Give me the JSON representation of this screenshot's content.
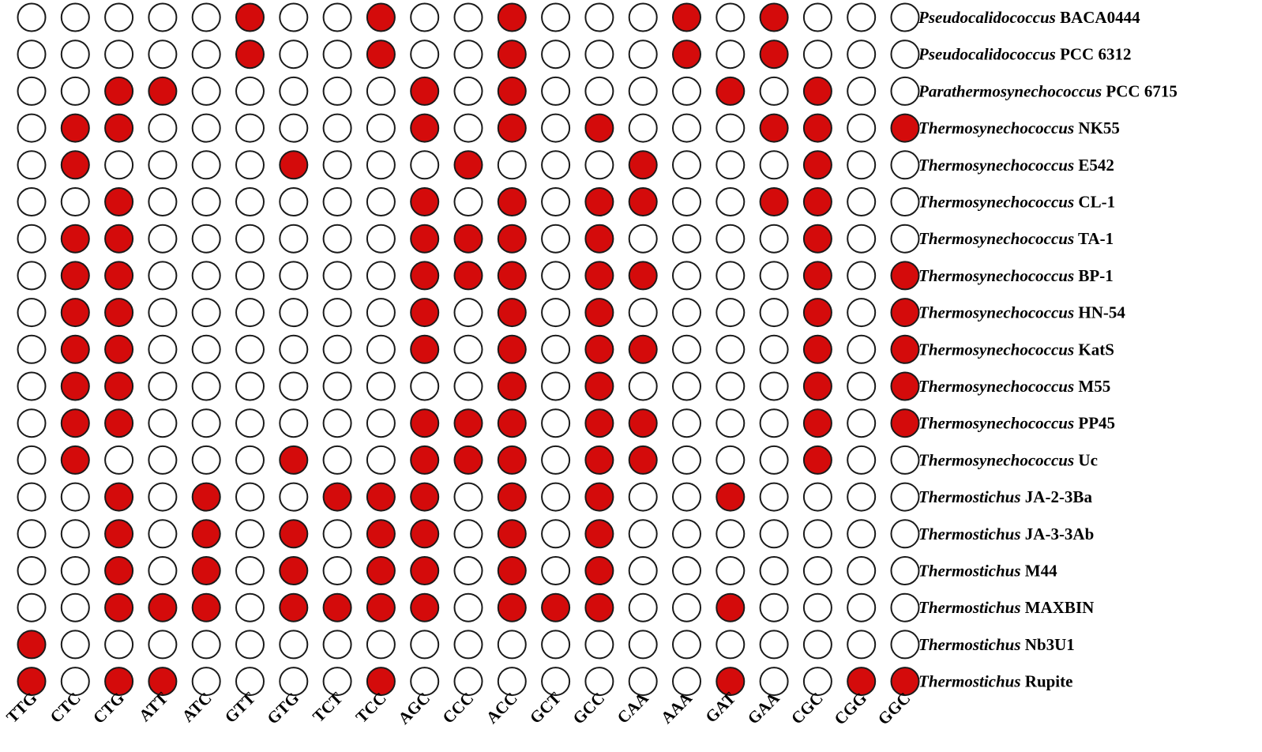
{
  "chart_data": {
    "type": "heatmap",
    "title": "",
    "xlabel": "",
    "ylabel": "",
    "columns": [
      "TTG",
      "CTC",
      "CTG",
      "ATT",
      "ATC",
      "GTT",
      "GTG",
      "TCT",
      "TCC",
      "AGC",
      "CCC",
      "ACC",
      "GCT",
      "GCC",
      "CAA",
      "AAA",
      "GAT",
      "GAA",
      "CGC",
      "CGG",
      "GGC"
    ],
    "rows": [
      {
        "genus": "Pseudocalidococcus",
        "strain": "BACA0444",
        "values": [
          0,
          0,
          0,
          0,
          0,
          1,
          0,
          0,
          1,
          0,
          0,
          1,
          0,
          0,
          0,
          1,
          0,
          1,
          0,
          0,
          0
        ]
      },
      {
        "genus": "Pseudocalidococcus",
        "strain": "PCC 6312",
        "values": [
          0,
          0,
          0,
          0,
          0,
          1,
          0,
          0,
          1,
          0,
          0,
          1,
          0,
          0,
          0,
          1,
          0,
          1,
          0,
          0,
          0
        ]
      },
      {
        "genus": "Parathermosynechococcus",
        "strain": "PCC 6715",
        "values": [
          0,
          0,
          1,
          1,
          0,
          0,
          0,
          0,
          0,
          1,
          0,
          1,
          0,
          0,
          0,
          0,
          1,
          0,
          1,
          0,
          0
        ]
      },
      {
        "genus": "Thermosynechococcus",
        "strain": "NK55",
        "values": [
          0,
          1,
          1,
          0,
          0,
          0,
          0,
          0,
          0,
          1,
          0,
          1,
          0,
          1,
          0,
          0,
          0,
          1,
          1,
          0,
          1
        ]
      },
      {
        "genus": "Thermosynechococcus",
        "strain": "E542",
        "values": [
          0,
          1,
          0,
          0,
          0,
          0,
          1,
          0,
          0,
          0,
          1,
          0,
          0,
          0,
          1,
          0,
          0,
          0,
          1,
          0,
          0
        ]
      },
      {
        "genus": "Thermosynechococcus",
        "strain": "CL-1",
        "values": [
          0,
          0,
          1,
          0,
          0,
          0,
          0,
          0,
          0,
          1,
          0,
          1,
          0,
          1,
          1,
          0,
          0,
          1,
          1,
          0,
          0
        ]
      },
      {
        "genus": "Thermosynechococcus",
        "strain": "TA-1",
        "values": [
          0,
          1,
          1,
          0,
          0,
          0,
          0,
          0,
          0,
          1,
          1,
          1,
          0,
          1,
          0,
          0,
          0,
          0,
          1,
          0,
          0
        ]
      },
      {
        "genus": "Thermosynechococcus",
        "strain": "BP-1",
        "values": [
          0,
          1,
          1,
          0,
          0,
          0,
          0,
          0,
          0,
          1,
          1,
          1,
          0,
          1,
          1,
          0,
          0,
          0,
          1,
          0,
          1
        ]
      },
      {
        "genus": "Thermosynechococcus",
        "strain": "HN-54",
        "values": [
          0,
          1,
          1,
          0,
          0,
          0,
          0,
          0,
          0,
          1,
          0,
          1,
          0,
          1,
          0,
          0,
          0,
          0,
          1,
          0,
          1
        ]
      },
      {
        "genus": "Thermosynechococcus",
        "strain": "KatS",
        "values": [
          0,
          1,
          1,
          0,
          0,
          0,
          0,
          0,
          0,
          1,
          0,
          1,
          0,
          1,
          1,
          0,
          0,
          0,
          1,
          0,
          1
        ]
      },
      {
        "genus": "Thermosynechococcus",
        "strain": "M55",
        "values": [
          0,
          1,
          1,
          0,
          0,
          0,
          0,
          0,
          0,
          0,
          0,
          1,
          0,
          1,
          0,
          0,
          0,
          0,
          1,
          0,
          1
        ]
      },
      {
        "genus": "Thermosynechococcus",
        "strain": "PP45",
        "values": [
          0,
          1,
          1,
          0,
          0,
          0,
          0,
          0,
          0,
          1,
          1,
          1,
          0,
          1,
          1,
          0,
          0,
          0,
          1,
          0,
          1
        ]
      },
      {
        "genus": "Thermosynechococcus",
        "strain": "Uc",
        "values": [
          0,
          1,
          0,
          0,
          0,
          0,
          1,
          0,
          0,
          1,
          1,
          1,
          0,
          1,
          1,
          0,
          0,
          0,
          1,
          0,
          0
        ]
      },
      {
        "genus": "Thermostichus",
        "strain": "JA-2-3Ba",
        "values": [
          0,
          0,
          1,
          0,
          1,
          0,
          0,
          1,
          1,
          1,
          0,
          1,
          0,
          1,
          0,
          0,
          1,
          0,
          0,
          0,
          0
        ]
      },
      {
        "genus": "Thermostichus",
        "strain": "JA-3-3Ab",
        "values": [
          0,
          0,
          1,
          0,
          1,
          0,
          1,
          0,
          1,
          1,
          0,
          1,
          0,
          1,
          0,
          0,
          0,
          0,
          0,
          0,
          0
        ]
      },
      {
        "genus": "Thermostichus",
        "strain": "M44",
        "values": [
          0,
          0,
          1,
          0,
          1,
          0,
          1,
          0,
          1,
          1,
          0,
          1,
          0,
          1,
          0,
          0,
          0,
          0,
          0,
          0,
          0
        ]
      },
      {
        "genus": "Thermostichus",
        "strain": "MAXBIN",
        "values": [
          0,
          0,
          1,
          1,
          1,
          0,
          1,
          1,
          1,
          1,
          0,
          1,
          1,
          1,
          0,
          0,
          1,
          0,
          0,
          0,
          0
        ]
      },
      {
        "genus": "Thermostichus",
        "strain": "Nb3U1",
        "values": [
          1,
          0,
          0,
          0,
          0,
          0,
          0,
          0,
          0,
          0,
          0,
          0,
          0,
          0,
          0,
          0,
          0,
          0,
          0,
          0,
          0
        ]
      },
      {
        "genus": "Thermostichus",
        "strain": "Rupite",
        "values": [
          1,
          0,
          1,
          1,
          0,
          0,
          0,
          0,
          1,
          0,
          0,
          0,
          0,
          0,
          0,
          0,
          1,
          0,
          0,
          1,
          1
        ]
      }
    ],
    "legend": "none",
    "grid": false,
    "colors": {
      "present": "#d40b0b",
      "absent": "#ffffff",
      "outline": "#1a1a1a"
    }
  }
}
